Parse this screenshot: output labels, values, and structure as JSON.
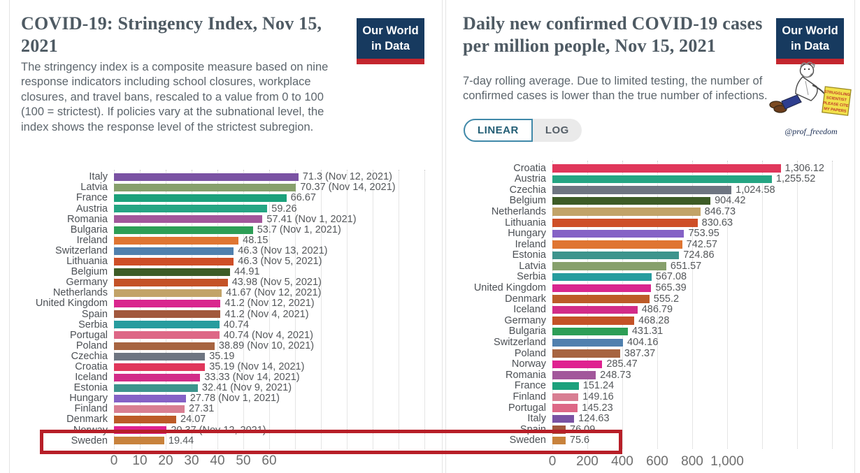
{
  "panels": {
    "left": {
      "title": "COVID-19: Stringency Index, Nov 15, 2021",
      "subtitle": "The stringency index is a composite measure based on nine response indicators including school closures, workplace closures, and travel bans, rescaled to a value from 0 to 100 (100 = strictest). If policies vary at the subnational level, the index shows the response level of the strictest subregion.",
      "logo": {
        "line1": "Our World",
        "line2": "in Data"
      }
    },
    "right": {
      "title": "Daily new confirmed COVID-19 cases per million people, Nov 15, 2021",
      "subtitle": "7-day rolling average. Due to limited testing, the number of confirmed cases is lower than the true number of infections.",
      "logo": {
        "line1": "Our World",
        "line2": "in Data"
      },
      "scale_toggle": {
        "linear_label": "LINEAR",
        "log_label": "LOG",
        "selected": "LINEAR"
      },
      "watermark": {
        "sign_lines": [
          "STRUGGLING",
          "SCIENTIST",
          "PLEASE CITE",
          "MY PAPERS"
        ],
        "signature": "@prof_freedom"
      }
    }
  },
  "colors": {
    "owid_navy": "#173a5f",
    "owid_red": "#c4262e",
    "highlight_red": "#b71f28",
    "toggle_blue": "#4089a9"
  },
  "highlight": {
    "country": "Sweden",
    "note": "red box around Sweden rows of both charts"
  },
  "chart_data": [
    {
      "id": "stringency-index",
      "type": "bar",
      "orientation": "horizontal",
      "title": "COVID-19: Stringency Index, Nov 15, 2021",
      "xlabel": "",
      "ylabel": "",
      "xlim": [
        0,
        110
      ],
      "x_ticks": [
        0,
        10,
        20,
        30,
        40,
        50,
        60
      ],
      "x_tick_labels": [
        "0",
        "10",
        "20",
        "30",
        "40",
        "50",
        "60"
      ],
      "grid": true,
      "rows": [
        {
          "country": "Italy",
          "value": 71.3,
          "label": "71.3 (Nov 12, 2021)",
          "color": "#7A52A3"
        },
        {
          "country": "Latvia",
          "value": 70.37,
          "label": "70.37 (Nov 14, 2021)",
          "color": "#87A06C"
        },
        {
          "country": "France",
          "value": 66.67,
          "label": "66.67",
          "color": "#1CA17C"
        },
        {
          "country": "Austria",
          "value": 59.26,
          "label": "59.26",
          "color": "#25A583"
        },
        {
          "country": "Romania",
          "value": 57.41,
          "label": "57.41 (Nov 1, 2021)",
          "color": "#A2579B"
        },
        {
          "country": "Bulgaria",
          "value": 53.7,
          "label": "53.7 (Nov 1, 2021)",
          "color": "#2D9E56"
        },
        {
          "country": "Ireland",
          "value": 48.15,
          "label": "48.15",
          "color": "#DF7532"
        },
        {
          "country": "Switzerland",
          "value": 46.3,
          "label": "46.3 (Nov 13, 2021)",
          "color": "#5080AE"
        },
        {
          "country": "Lithuania",
          "value": 46.3,
          "label": "46.3 (Nov 5, 2021)",
          "color": "#CE4E27"
        },
        {
          "country": "Belgium",
          "value": 44.91,
          "label": "44.91",
          "color": "#3D5C26"
        },
        {
          "country": "Germany",
          "value": 43.98,
          "label": "43.98 (Nov 5, 2021)",
          "color": "#C45227"
        },
        {
          "country": "Netherlands",
          "value": 41.67,
          "label": "41.67 (Nov 12, 2021)",
          "color": "#C2A368"
        },
        {
          "country": "United Kingdom",
          "value": 41.2,
          "label": "41.2 (Nov 12, 2021)",
          "color": "#D9268E"
        },
        {
          "country": "Spain",
          "value": 41.2,
          "label": "41.2 (Nov 4, 2021)",
          "color": "#A2583D"
        },
        {
          "country": "Serbia",
          "value": 40.74,
          "label": "40.74",
          "color": "#279C9E"
        },
        {
          "country": "Portugal",
          "value": 40.74,
          "label": "40.74 (Nov 4, 2021)",
          "color": "#DD6786"
        },
        {
          "country": "Poland",
          "value": 38.89,
          "label": "38.89 (Nov 10, 2021)",
          "color": "#A76440"
        },
        {
          "country": "Czechia",
          "value": 35.19,
          "label": "35.19",
          "color": "#6E7581"
        },
        {
          "country": "Croatia",
          "value": 35.19,
          "label": "35.19 (Nov 14, 2021)",
          "color": "#E0375B"
        },
        {
          "country": "Iceland",
          "value": 33.33,
          "label": "33.33 (Nov 14, 2021)",
          "color": "#D22C88"
        },
        {
          "country": "Estonia",
          "value": 32.41,
          "label": "32.41 (Nov 9, 2021)",
          "color": "#3D948D"
        },
        {
          "country": "Hungary",
          "value": 27.78,
          "label": "27.78 (Nov 1, 2021)",
          "color": "#8562C6"
        },
        {
          "country": "Finland",
          "value": 27.31,
          "label": "27.31",
          "color": "#D87E92"
        },
        {
          "country": "Denmark",
          "value": 24.07,
          "label": "24.07",
          "color": "#BC5B28"
        },
        {
          "country": "Norway",
          "value": 20.37,
          "label": "20.37 (Nov 12, 2021)",
          "color": "#DF2190"
        },
        {
          "country": "Sweden",
          "value": 19.44,
          "label": "19.44",
          "color": "#C8823C"
        }
      ]
    },
    {
      "id": "daily-cases-per-million",
      "type": "bar",
      "orientation": "horizontal",
      "title": "Daily new confirmed COVID-19 cases per million people, Nov 15, 2021",
      "xlabel": "",
      "ylabel": "",
      "xlim": [
        0,
        1600
      ],
      "x_ticks": [
        0,
        200,
        400,
        600,
        800,
        1000
      ],
      "x_tick_labels": [
        "0",
        "200",
        "400",
        "600",
        "800",
        "1,000"
      ],
      "grid": true,
      "rows": [
        {
          "country": "Croatia",
          "value": 1306.12,
          "label": "1,306.12",
          "color": "#E0375B"
        },
        {
          "country": "Austria",
          "value": 1255.52,
          "label": "1,255.52",
          "color": "#25A583"
        },
        {
          "country": "Czechia",
          "value": 1024.58,
          "label": "1,024.58",
          "color": "#6E7581"
        },
        {
          "country": "Belgium",
          "value": 904.42,
          "label": "904.42",
          "color": "#3D5C26"
        },
        {
          "country": "Netherlands",
          "value": 846.73,
          "label": "846.73",
          "color": "#C2A368"
        },
        {
          "country": "Lithuania",
          "value": 830.63,
          "label": "830.63",
          "color": "#CE4E27"
        },
        {
          "country": "Hungary",
          "value": 753.95,
          "label": "753.95",
          "color": "#8562C6"
        },
        {
          "country": "Ireland",
          "value": 742.57,
          "label": "742.57",
          "color": "#DF7532"
        },
        {
          "country": "Estonia",
          "value": 724.86,
          "label": "724.86",
          "color": "#3D948D"
        },
        {
          "country": "Latvia",
          "value": 651.57,
          "label": "651.57",
          "color": "#87A06C"
        },
        {
          "country": "Serbia",
          "value": 567.08,
          "label": "567.08",
          "color": "#279C9E"
        },
        {
          "country": "United Kingdom",
          "value": 565.39,
          "label": "565.39",
          "color": "#D9268E"
        },
        {
          "country": "Denmark",
          "value": 555.2,
          "label": "555.2",
          "color": "#BC5B28"
        },
        {
          "country": "Iceland",
          "value": 486.79,
          "label": "486.79",
          "color": "#D22C88"
        },
        {
          "country": "Germany",
          "value": 468.28,
          "label": "468.28",
          "color": "#C45227"
        },
        {
          "country": "Bulgaria",
          "value": 431.31,
          "label": "431.31",
          "color": "#2D9E56"
        },
        {
          "country": "Switzerland",
          "value": 404.16,
          "label": "404.16",
          "color": "#5080AE"
        },
        {
          "country": "Poland",
          "value": 387.37,
          "label": "387.37",
          "color": "#A76440"
        },
        {
          "country": "Norway",
          "value": 285.47,
          "label": "285.47",
          "color": "#DF2190"
        },
        {
          "country": "Romania",
          "value": 248.73,
          "label": "248.73",
          "color": "#A2579B"
        },
        {
          "country": "France",
          "value": 151.24,
          "label": "151.24",
          "color": "#1CA17C"
        },
        {
          "country": "Finland",
          "value": 149.16,
          "label": "149.16",
          "color": "#D87E92"
        },
        {
          "country": "Portugal",
          "value": 145.23,
          "label": "145.23",
          "color": "#DD6786"
        },
        {
          "country": "Italy",
          "value": 124.63,
          "label": "124.63",
          "color": "#7A52A3"
        },
        {
          "country": "Spain",
          "value": 76.09,
          "label": "76.09",
          "color": "#A2583D"
        },
        {
          "country": "Sweden",
          "value": 75.6,
          "label": "75.6",
          "color": "#C8823C"
        }
      ]
    }
  ]
}
